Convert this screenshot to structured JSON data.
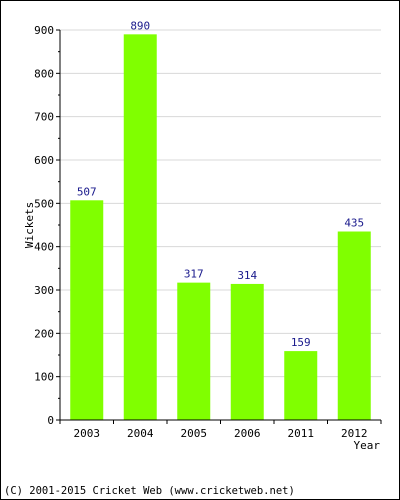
{
  "chart_data": {
    "type": "bar",
    "categories": [
      "2003",
      "2004",
      "2005",
      "2006",
      "2011",
      "2012"
    ],
    "values": [
      507,
      890,
      317,
      314,
      159,
      435
    ],
    "title": "",
    "xlabel": "Year",
    "ylabel": "Wickets",
    "ylim": [
      0,
      900
    ],
    "yticks": [
      0,
      100,
      200,
      300,
      400,
      500,
      600,
      700,
      800,
      900
    ],
    "grid": true,
    "bar_color": "#80ff00",
    "label_color": "#1a1a8c",
    "grid_color": "#d8d8d8"
  },
  "footer": {
    "copyright": "(C) 2001-2015 Cricket Web (www.cricketweb.net)"
  }
}
